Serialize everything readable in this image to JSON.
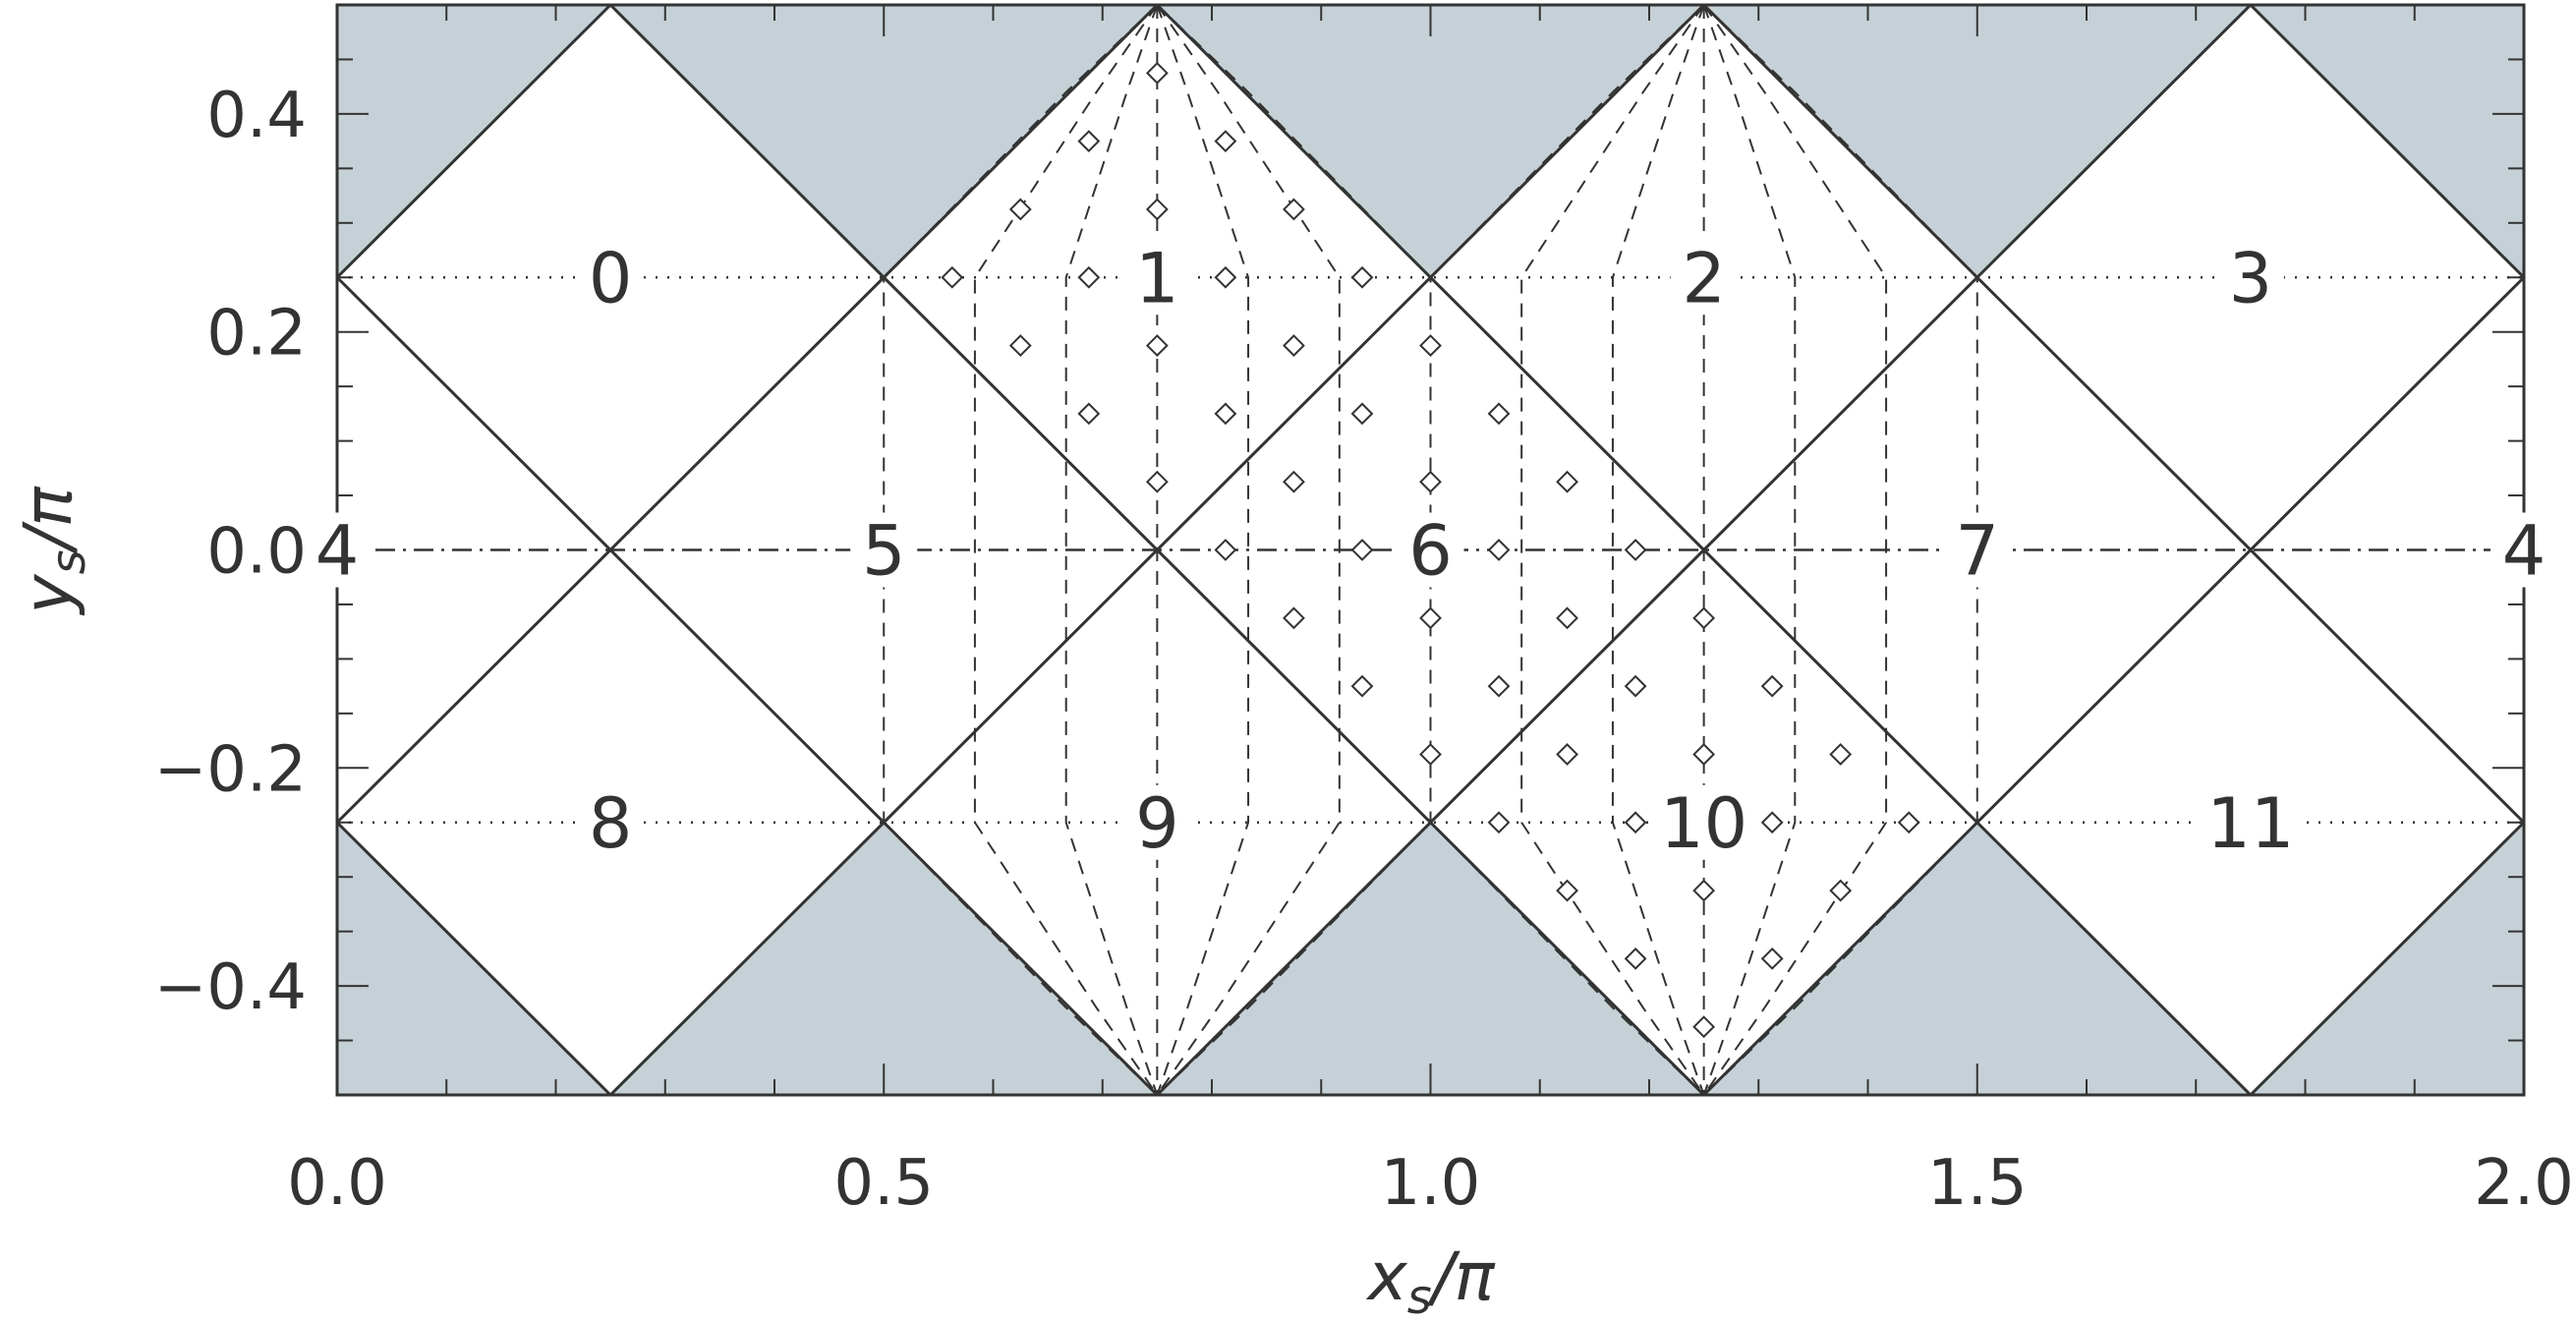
{
  "colors": {
    "shade": "#c5d1d6",
    "line": "#333333",
    "background": "#ffffff"
  },
  "axes": {
    "x": {
      "min": 0,
      "max": 2,
      "ticks": [
        "0.0",
        "0.5",
        "1.0",
        "1.5",
        "2.0"
      ],
      "label": "x_s/π"
    },
    "y": {
      "min": -0.5,
      "max": 0.5,
      "ticks": [
        "−0.4",
        "−0.2",
        "0.0",
        "0.2",
        "0.4"
      ],
      "label": "y_s/π"
    }
  },
  "axis_titles": {
    "x_main": "x",
    "x_sub": "s",
    "x_den": "/π",
    "y_main": "y",
    "y_sub": "s",
    "y_den": "/π"
  },
  "regions": [
    "0",
    "1",
    "2",
    "3",
    "4",
    "5",
    "6",
    "7",
    "4",
    "8",
    "9",
    "10",
    "11"
  ],
  "chart_data": {
    "type": "scatter",
    "description_units": "x_s/π vs y_s/π",
    "xlim": [
      0,
      2
    ],
    "ylim": [
      -0.5,
      0.5
    ],
    "region_centers": [
      {
        "label": "0",
        "x": 0.25,
        "y": 0.25
      },
      {
        "label": "1",
        "x": 0.75,
        "y": 0.25
      },
      {
        "label": "2",
        "x": 1.25,
        "y": 0.25
      },
      {
        "label": "3",
        "x": 1.75,
        "y": 0.25
      },
      {
        "label": "4",
        "x": 0.0,
        "y": 0.0
      },
      {
        "label": "5",
        "x": 0.5,
        "y": 0.0
      },
      {
        "label": "6",
        "x": 1.0,
        "y": 0.0
      },
      {
        "label": "7",
        "x": 1.5,
        "y": 0.0
      },
      {
        "label": "4",
        "x": 2.0,
        "y": 0.0
      },
      {
        "label": "8",
        "x": 0.25,
        "y": -0.25
      },
      {
        "label": "9",
        "x": 0.75,
        "y": -0.25
      },
      {
        "label": "10",
        "x": 1.25,
        "y": -0.25
      },
      {
        "label": "11",
        "x": 1.75,
        "y": -0.25
      }
    ],
    "diamond_markers": [
      [
        0.75,
        0.4375
      ],
      [
        0.6875,
        0.375
      ],
      [
        0.8125,
        0.375
      ],
      [
        0.625,
        0.3125
      ],
      [
        0.75,
        0.3125
      ],
      [
        0.875,
        0.3125
      ],
      [
        0.5625,
        0.25
      ],
      [
        0.6875,
        0.25
      ],
      [
        0.8125,
        0.25
      ],
      [
        0.9375,
        0.25
      ],
      [
        0.625,
        0.1875
      ],
      [
        0.75,
        0.1875
      ],
      [
        0.875,
        0.1875
      ],
      [
        1.0,
        0.1875
      ],
      [
        0.6875,
        0.125
      ],
      [
        0.8125,
        0.125
      ],
      [
        0.9375,
        0.125
      ],
      [
        1.0625,
        0.125
      ],
      [
        0.75,
        0.0625
      ],
      [
        0.875,
        0.0625
      ],
      [
        1.0,
        0.0625
      ],
      [
        1.125,
        0.0625
      ],
      [
        0.8125,
        0.0
      ],
      [
        0.9375,
        0.0
      ],
      [
        1.0625,
        0.0
      ],
      [
        1.1875,
        0.0
      ],
      [
        0.875,
        -0.0625
      ],
      [
        1.0,
        -0.0625
      ],
      [
        1.125,
        -0.0625
      ],
      [
        1.25,
        -0.0625
      ],
      [
        0.9375,
        -0.125
      ],
      [
        1.0625,
        -0.125
      ],
      [
        1.1875,
        -0.125
      ],
      [
        1.3125,
        -0.125
      ],
      [
        1.0,
        -0.1875
      ],
      [
        1.125,
        -0.1875
      ],
      [
        1.25,
        -0.1875
      ],
      [
        1.375,
        -0.1875
      ],
      [
        1.0625,
        -0.25
      ],
      [
        1.1875,
        -0.25
      ],
      [
        1.3125,
        -0.25
      ],
      [
        1.4375,
        -0.25
      ],
      [
        1.125,
        -0.3125
      ],
      [
        1.25,
        -0.3125
      ],
      [
        1.375,
        -0.3125
      ],
      [
        1.1875,
        -0.375
      ],
      [
        1.3125,
        -0.375
      ],
      [
        1.25,
        -0.4375
      ]
    ]
  }
}
